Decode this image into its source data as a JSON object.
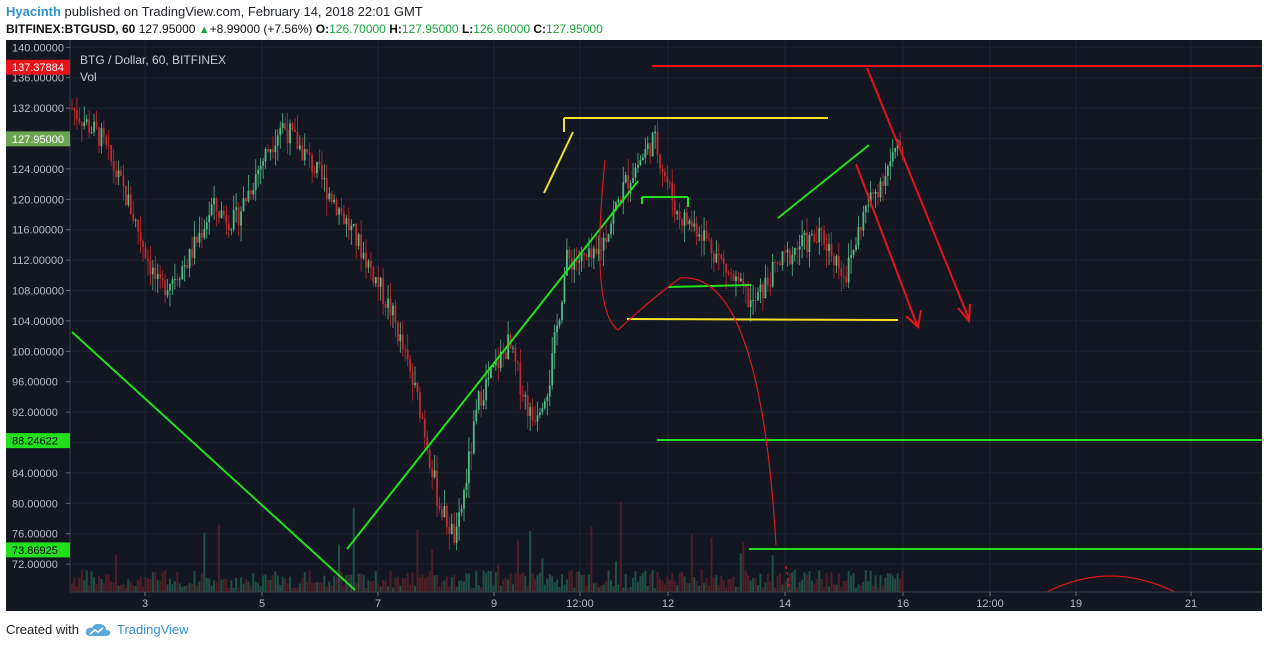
{
  "header": {
    "author": "Hyacinth",
    "published": " published on TradingView.com, February 14, 2018 22:01 GMT",
    "symbol": "BITFINEX:BTGUSD, 60",
    "last": "127.95000",
    "change": "+8.99000 (+7.56%)",
    "o_label": "O:",
    "o_value": "126.70000",
    "h_label": "H:",
    "h_value": "127.95000",
    "l_label": "L:",
    "l_value": "126.60000",
    "c_label": "C:",
    "c_value": "127.95000"
  },
  "legend": {
    "title": "BTG / Dollar, 60, BITFINEX",
    "volume": "Vol"
  },
  "footer": {
    "created": "Created with",
    "brand": "TradingView"
  },
  "colors": {
    "background": "#131722",
    "up": "#53b987",
    "down": "#c0282b",
    "green_line": "#22e01c",
    "yellow_line": "#f2e125",
    "red_line": "#e5141b"
  },
  "chart_data": {
    "type": "candlestick",
    "ylim": [
      68,
      140
    ],
    "y_ticks": [
      "140.00000",
      "136.00000",
      "132.00000",
      "128.00000",
      "124.00000",
      "120.00000",
      "116.00000",
      "112.00000",
      "108.00000",
      "104.00000",
      "100.00000",
      "96.00000",
      "92.00000",
      "88.00000",
      "84.00000",
      "80.00000",
      "76.00000",
      "72.00000"
    ],
    "x_ticks": [
      "3",
      "5",
      "7",
      "9",
      "12:00",
      "12",
      "14",
      "16",
      "12:00",
      "19",
      "21"
    ],
    "price_labels": [
      {
        "text": "137.37884",
        "value": 137.37884,
        "color": "#e5141b"
      },
      {
        "text": "127.95000",
        "value": 127.95,
        "color": "#6ba553"
      },
      {
        "text": "88.24622",
        "value": 88.24622,
        "color": "#22e01c"
      },
      {
        "text": "73.86925",
        "value": 73.86925,
        "color": "#22e01c"
      }
    ],
    "series_close": [
      [
        0,
        132
      ],
      [
        0.5,
        128
      ],
      [
        1.0,
        119
      ],
      [
        1.5,
        108
      ],
      [
        2.0,
        112
      ],
      [
        2.4,
        119
      ],
      [
        2.8,
        117
      ],
      [
        3.2,
        124
      ],
      [
        3.6,
        130
      ],
      [
        4.0,
        126
      ],
      [
        4.5,
        120
      ],
      [
        5.0,
        113
      ],
      [
        5.5,
        105
      ],
      [
        6.0,
        92
      ],
      [
        6.3,
        80
      ],
      [
        6.6,
        75
      ],
      [
        7.0,
        94
      ],
      [
        7.5,
        101
      ],
      [
        7.9,
        91
      ],
      [
        8.2,
        96
      ],
      [
        8.5,
        112
      ],
      [
        9.0,
        112
      ],
      [
        9.5,
        122
      ],
      [
        10.0,
        128
      ],
      [
        10.4,
        118
      ],
      [
        10.8,
        116
      ],
      [
        11.3,
        110
      ],
      [
        11.7,
        106
      ],
      [
        12.1,
        111
      ],
      [
        12.5,
        114
      ],
      [
        12.9,
        115
      ],
      [
        13.3,
        110
      ],
      [
        13.6,
        118
      ],
      [
        14.0,
        124
      ],
      [
        14.3,
        127.95
      ]
    ],
    "annotations": [
      {
        "type": "hline",
        "color": "green",
        "value": 88.24622
      },
      {
        "type": "hline",
        "color": "green",
        "value": 73.86925
      },
      {
        "type": "hline",
        "color": "red",
        "value": 137.37884
      },
      {
        "type": "trendline",
        "color": "green"
      },
      {
        "type": "rectangle",
        "color": "yellow"
      },
      {
        "type": "arrow",
        "color": "red",
        "count": 2
      }
    ]
  }
}
